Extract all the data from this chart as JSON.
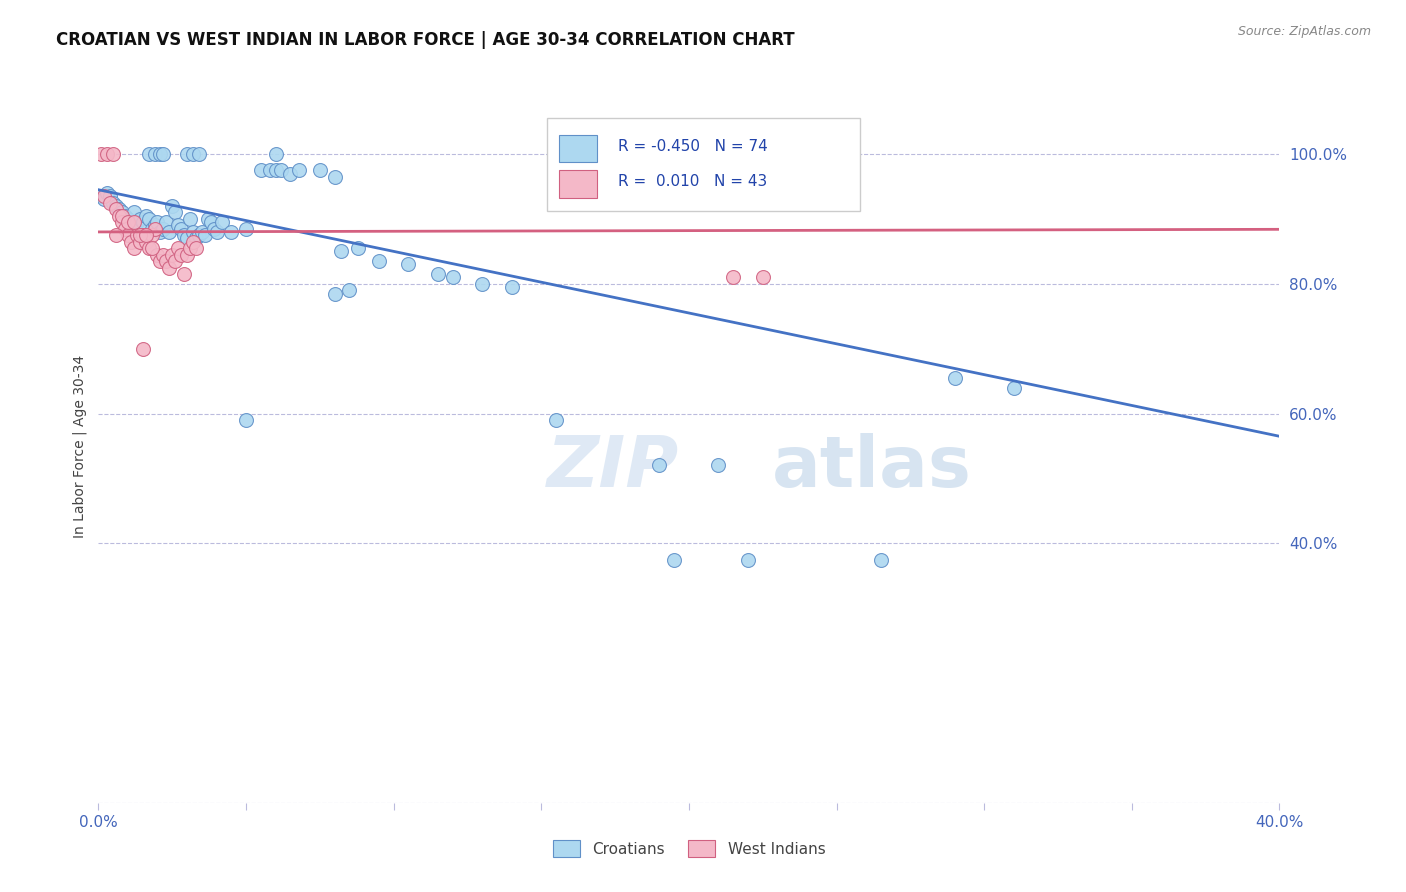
{
  "title": "CROATIAN VS WEST INDIAN IN LABOR FORCE | AGE 30-34 CORRELATION CHART",
  "source": "Source: ZipAtlas.com",
  "ylabel": "In Labor Force | Age 30-34",
  "xlim": [
    0.0,
    0.4
  ],
  "ylim": [
    0.0,
    1.1
  ],
  "x_ticks": [
    0.0,
    0.05,
    0.1,
    0.15,
    0.2,
    0.25,
    0.3,
    0.35,
    0.4
  ],
  "y_ticks_right": [
    0.4,
    0.6,
    0.8,
    1.0
  ],
  "y_tick_labels_right": [
    "40.0%",
    "60.0%",
    "80.0%",
    "100.0%"
  ],
  "watermark_zip": "ZIP",
  "watermark_atlas": "atlas",
  "blue_color": "#ADD8F0",
  "pink_color": "#F4B8C8",
  "blue_edge_color": "#6090C8",
  "pink_edge_color": "#D06080",
  "blue_line_color": "#4472C4",
  "pink_line_color": "#D46080",
  "blue_scatter": [
    [
      0.001,
      0.935
    ],
    [
      0.002,
      0.93
    ],
    [
      0.003,
      0.94
    ],
    [
      0.004,
      0.935
    ],
    [
      0.005,
      0.925
    ],
    [
      0.006,
      0.92
    ],
    [
      0.007,
      0.915
    ],
    [
      0.008,
      0.91
    ],
    [
      0.009,
      0.905
    ],
    [
      0.01,
      0.9
    ],
    [
      0.011,
      0.895
    ],
    [
      0.012,
      0.91
    ],
    [
      0.013,
      0.895
    ],
    [
      0.014,
      0.9
    ],
    [
      0.015,
      0.895
    ],
    [
      0.016,
      0.905
    ],
    [
      0.017,
      0.9
    ],
    [
      0.018,
      0.885
    ],
    [
      0.019,
      0.89
    ],
    [
      0.02,
      0.895
    ],
    [
      0.021,
      0.88
    ],
    [
      0.022,
      0.885
    ],
    [
      0.023,
      0.895
    ],
    [
      0.024,
      0.88
    ],
    [
      0.025,
      0.92
    ],
    [
      0.026,
      0.91
    ],
    [
      0.027,
      0.89
    ],
    [
      0.028,
      0.885
    ],
    [
      0.029,
      0.875
    ],
    [
      0.03,
      0.87
    ],
    [
      0.031,
      0.9
    ],
    [
      0.032,
      0.88
    ],
    [
      0.033,
      0.87
    ],
    [
      0.034,
      0.875
    ],
    [
      0.035,
      0.88
    ],
    [
      0.036,
      0.875
    ],
    [
      0.037,
      0.9
    ],
    [
      0.038,
      0.895
    ],
    [
      0.039,
      0.885
    ],
    [
      0.04,
      0.88
    ],
    [
      0.042,
      0.895
    ],
    [
      0.045,
      0.88
    ],
    [
      0.05,
      0.885
    ],
    [
      0.055,
      0.975
    ],
    [
      0.058,
      0.975
    ],
    [
      0.06,
      0.975
    ],
    [
      0.062,
      0.975
    ],
    [
      0.065,
      0.97
    ],
    [
      0.068,
      0.975
    ],
    [
      0.075,
      0.975
    ],
    [
      0.08,
      0.965
    ],
    [
      0.03,
      1.0
    ],
    [
      0.032,
      1.0
    ],
    [
      0.034,
      1.0
    ],
    [
      0.017,
      1.0
    ],
    [
      0.019,
      1.0
    ],
    [
      0.021,
      1.0
    ],
    [
      0.022,
      1.0
    ],
    [
      0.06,
      1.0
    ],
    [
      0.082,
      0.85
    ],
    [
      0.088,
      0.855
    ],
    [
      0.095,
      0.835
    ],
    [
      0.105,
      0.83
    ],
    [
      0.115,
      0.815
    ],
    [
      0.12,
      0.81
    ],
    [
      0.13,
      0.8
    ],
    [
      0.14,
      0.795
    ],
    [
      0.08,
      0.785
    ],
    [
      0.085,
      0.79
    ],
    [
      0.05,
      0.59
    ],
    [
      0.19,
      0.52
    ],
    [
      0.21,
      0.52
    ],
    [
      0.22,
      0.375
    ],
    [
      0.265,
      0.375
    ],
    [
      0.29,
      0.655
    ],
    [
      0.31,
      0.64
    ],
    [
      0.195,
      0.375
    ],
    [
      0.155,
      0.59
    ]
  ],
  "pink_scatter": [
    [
      0.001,
      1.0
    ],
    [
      0.003,
      1.0
    ],
    [
      0.005,
      1.0
    ],
    [
      0.002,
      0.935
    ],
    [
      0.004,
      0.925
    ],
    [
      0.006,
      0.915
    ],
    [
      0.007,
      0.905
    ],
    [
      0.008,
      0.895
    ],
    [
      0.009,
      0.885
    ],
    [
      0.01,
      0.875
    ],
    [
      0.011,
      0.865
    ],
    [
      0.012,
      0.855
    ],
    [
      0.013,
      0.875
    ],
    [
      0.014,
      0.865
    ],
    [
      0.015,
      0.875
    ],
    [
      0.016,
      0.865
    ],
    [
      0.017,
      0.855
    ],
    [
      0.018,
      0.875
    ],
    [
      0.019,
      0.885
    ],
    [
      0.02,
      0.845
    ],
    [
      0.021,
      0.835
    ],
    [
      0.022,
      0.845
    ],
    [
      0.023,
      0.835
    ],
    [
      0.024,
      0.825
    ],
    [
      0.025,
      0.845
    ],
    [
      0.026,
      0.835
    ],
    [
      0.027,
      0.855
    ],
    [
      0.028,
      0.845
    ],
    [
      0.029,
      0.815
    ],
    [
      0.03,
      0.845
    ],
    [
      0.031,
      0.855
    ],
    [
      0.032,
      0.865
    ],
    [
      0.033,
      0.855
    ],
    [
      0.006,
      0.875
    ],
    [
      0.008,
      0.905
    ],
    [
      0.01,
      0.895
    ],
    [
      0.012,
      0.895
    ],
    [
      0.014,
      0.875
    ],
    [
      0.016,
      0.875
    ],
    [
      0.018,
      0.855
    ],
    [
      0.015,
      0.7
    ],
    [
      0.215,
      0.81
    ],
    [
      0.225,
      0.81
    ]
  ],
  "blue_line_x": [
    0.0,
    0.4
  ],
  "blue_line_y": [
    0.945,
    0.565
  ],
  "pink_line_x": [
    0.0,
    0.4
  ],
  "pink_line_y": [
    0.88,
    0.884
  ]
}
